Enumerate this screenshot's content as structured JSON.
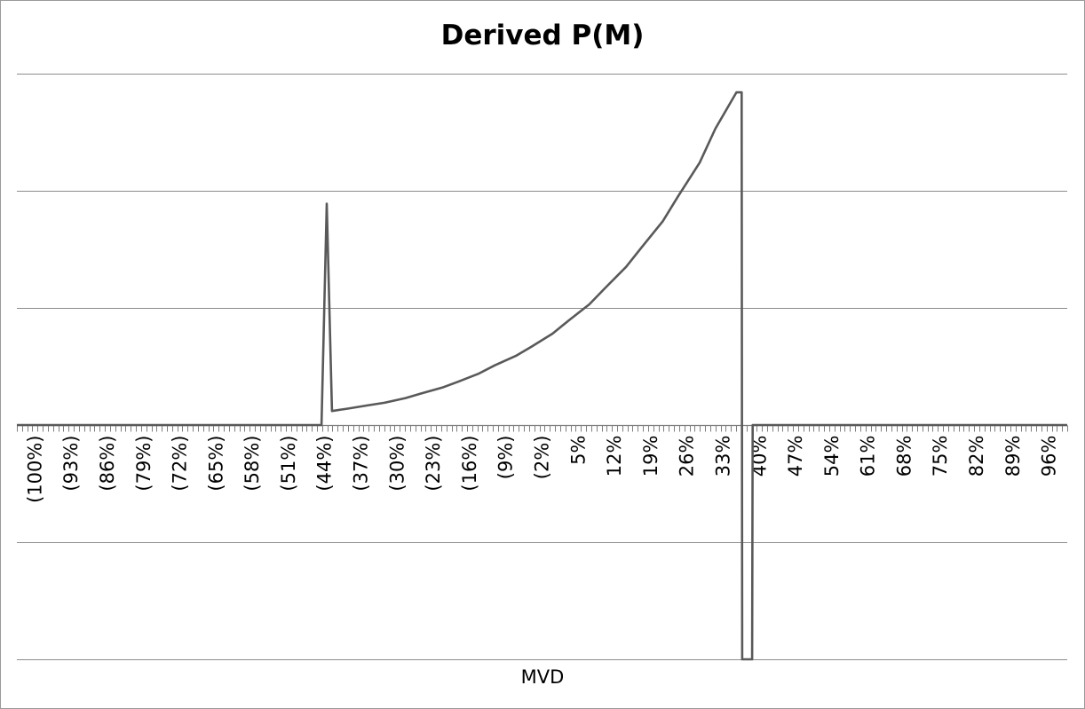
{
  "chart_data": {
    "type": "line",
    "title": "Derived P(M)",
    "xlabel": "MVD",
    "ylabel": "",
    "tick_labels": [
      "(100%)",
      "(93%)",
      "(86%)",
      "(79%)",
      "(72%)",
      "(65%)",
      "(58%)",
      "(51%)",
      "(44%)",
      "(37%)",
      "(30%)",
      "(23%)",
      "(16%)",
      "(9%)",
      "(2%)",
      "5%",
      "12%",
      "19%",
      "26%",
      "33%",
      "40%",
      "47%",
      "54%",
      "61%",
      "68%",
      "75%",
      "82%",
      "89%",
      "96%"
    ],
    "xlim": [
      -1.0,
      1.0
    ],
    "ylim": [
      -2.0,
      3.0
    ],
    "gridlines_y": [
      -2,
      -1,
      1,
      2,
      3
    ],
    "grid": true,
    "legend": "none",
    "series": [
      {
        "color": "#595959",
        "x": [
          -1.0,
          -0.42,
          -0.41,
          -0.4,
          -0.37,
          -0.33,
          -0.3,
          -0.26,
          -0.23,
          -0.19,
          -0.16,
          -0.12,
          -0.09,
          -0.05,
          -0.02,
          0.02,
          0.05,
          0.09,
          0.12,
          0.16,
          0.19,
          0.23,
          0.26,
          0.3,
          0.33,
          0.37,
          0.38,
          0.381,
          0.4,
          0.401,
          1.0
        ],
        "y": [
          0,
          0,
          1.89,
          0.12,
          0.14,
          0.17,
          0.19,
          0.23,
          0.27,
          0.32,
          0.37,
          0.44,
          0.51,
          0.59,
          0.67,
          0.78,
          0.89,
          1.03,
          1.17,
          1.35,
          1.52,
          1.74,
          1.96,
          2.24,
          2.53,
          2.84,
          2.84,
          -2.0,
          -2.0,
          0,
          0
        ]
      }
    ]
  }
}
